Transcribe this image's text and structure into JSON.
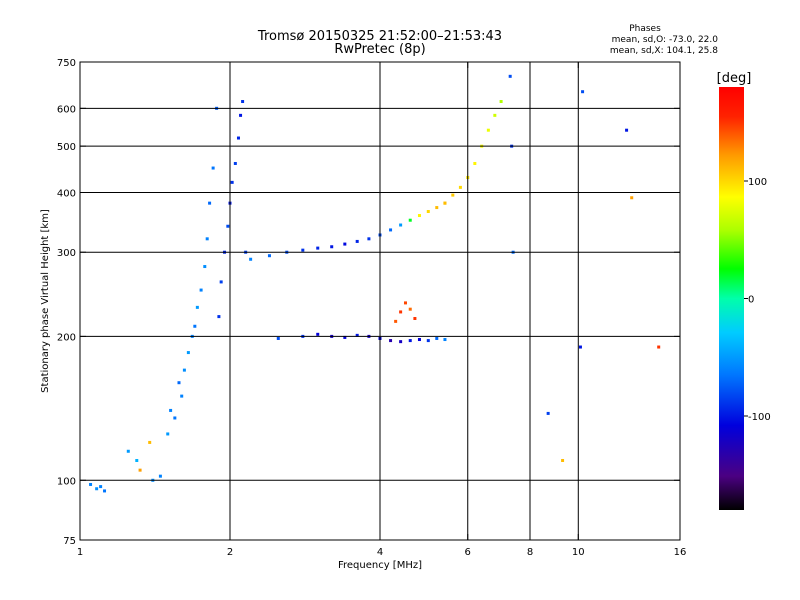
{
  "header": {
    "title_line1": "Tromsø 20150325 21:52:00–21:53:43",
    "title_line2": "RwPretec (8p)"
  },
  "stats": {
    "heading": "Phases",
    "line_o": "mean, sd,O: -73.0, 22.0",
    "line_x": "mean, sd,X: 104.1, 25.8"
  },
  "chart_data": {
    "type": "scatter",
    "xlabel": "Frequency [MHz]",
    "ylabel": "Stationary phase Virtual Height [km]",
    "x_scale": "log",
    "y_scale": "log",
    "xlim": [
      1,
      16
    ],
    "ylim": [
      75,
      750
    ],
    "x_ticks": [
      1,
      2,
      4,
      6,
      8,
      10,
      16
    ],
    "x_tick_labels": [
      "1",
      "2",
      "4",
      "6",
      "8",
      "10",
      "16"
    ],
    "y_ticks": [
      75,
      100,
      200,
      300,
      400,
      500,
      600,
      750
    ],
    "y_tick_labels": [
      "75",
      "100",
      "200",
      "300",
      "400",
      "500",
      "600",
      "750"
    ],
    "x_gridlines": [
      2,
      4,
      6,
      8,
      10
    ],
    "y_gridlines": [
      100,
      200,
      300,
      400,
      500,
      600
    ],
    "grid": true,
    "colorbar": {
      "label": "[deg]",
      "range": [
        -180,
        180
      ],
      "ticks": [
        100,
        0,
        -100
      ],
      "tick_labels": [
        "100",
        "0",
        "-100"
      ],
      "colormap": "rainbow"
    },
    "series": [
      {
        "x": [
          1.05,
          1.08,
          1.1,
          1.12,
          1.25,
          1.3,
          1.32,
          1.38,
          1.4,
          1.45,
          1.5,
          1.52,
          1.55,
          1.58,
          1.6,
          1.62,
          1.65,
          1.68,
          1.7,
          1.72,
          1.75,
          1.78,
          1.8,
          1.82,
          1.85,
          1.88
        ],
        "y": [
          98,
          96,
          97,
          95,
          115,
          110,
          105,
          120,
          100,
          102,
          125,
          140,
          135,
          160,
          150,
          170,
          185,
          200,
          210,
          230,
          250,
          280,
          320,
          380,
          450,
          600
        ],
        "phase": [
          -60,
          -55,
          -60,
          -65,
          -50,
          -40,
          120,
          110,
          -55,
          -60,
          -50,
          -60,
          -65,
          -70,
          -60,
          -55,
          -50,
          -60,
          -65,
          -50,
          -60,
          -55,
          -60,
          -70,
          -65,
          -75
        ]
      },
      {
        "x": [
          1.9,
          1.92,
          1.95,
          1.98,
          2.0,
          2.02,
          2.05,
          2.08,
          2.1,
          2.12,
          2.15
        ],
        "y": [
          220,
          260,
          300,
          340,
          380,
          420,
          460,
          520,
          580,
          620,
          300
        ],
        "phase": [
          -90,
          -85,
          -95,
          -80,
          -100,
          -90,
          -85,
          -95,
          -100,
          -90,
          -85
        ]
      },
      {
        "x": [
          2.2,
          2.4,
          2.6,
          2.8,
          3.0,
          3.2,
          3.4,
          3.6,
          3.8,
          4.0,
          4.2,
          4.4,
          4.6,
          4.8,
          5.0,
          5.2,
          5.4
        ],
        "y": [
          290,
          295,
          300,
          303,
          306,
          308,
          312,
          316,
          320,
          326,
          334,
          342,
          350,
          358,
          365,
          372,
          380
        ],
        "phase": [
          -60,
          -70,
          -80,
          -90,
          -95,
          -100,
          -105,
          -95,
          -90,
          -80,
          -70,
          -50,
          20,
          90,
          100,
          110,
          105
        ]
      },
      {
        "x": [
          5.4,
          5.6,
          5.8,
          6.0,
          6.2,
          6.4,
          6.6,
          6.8,
          7.0
        ],
        "y": [
          380,
          395,
          410,
          430,
          460,
          500,
          540,
          580,
          620
        ],
        "phase": [
          110,
          105,
          100,
          95,
          90,
          85,
          80,
          70,
          60
        ]
      },
      {
        "x": [
          2.5,
          2.8,
          3.0,
          3.2,
          3.4,
          3.6,
          3.8,
          4.0,
          4.2,
          4.4,
          4.6,
          4.8,
          5.0,
          5.2,
          5.4
        ],
        "y": [
          198,
          200,
          202,
          200,
          199,
          201,
          200,
          198,
          196,
          195,
          196,
          197,
          196,
          198,
          197
        ],
        "phase": [
          -80,
          -90,
          -110,
          -120,
          -110,
          -100,
          -120,
          -110,
          -130,
          -120,
          -100,
          -110,
          -90,
          -70,
          -60
        ]
      },
      {
        "x": [
          4.3,
          4.4,
          4.5,
          4.6,
          4.7
        ],
        "y": [
          215,
          225,
          235,
          228,
          218
        ],
        "phase": [
          140,
          150,
          145,
          135,
          150
        ]
      },
      {
        "x": [
          7.3,
          7.35,
          7.4,
          8.7,
          9.3,
          10.1,
          10.2,
          12.5,
          12.8,
          14.5
        ],
        "y": [
          700,
          500,
          300,
          138,
          110,
          190,
          650,
          540,
          390,
          190
        ],
        "phase": [
          -80,
          -90,
          -70,
          -85,
          110,
          -100,
          -80,
          -100,
          120,
          150
        ]
      }
    ]
  }
}
